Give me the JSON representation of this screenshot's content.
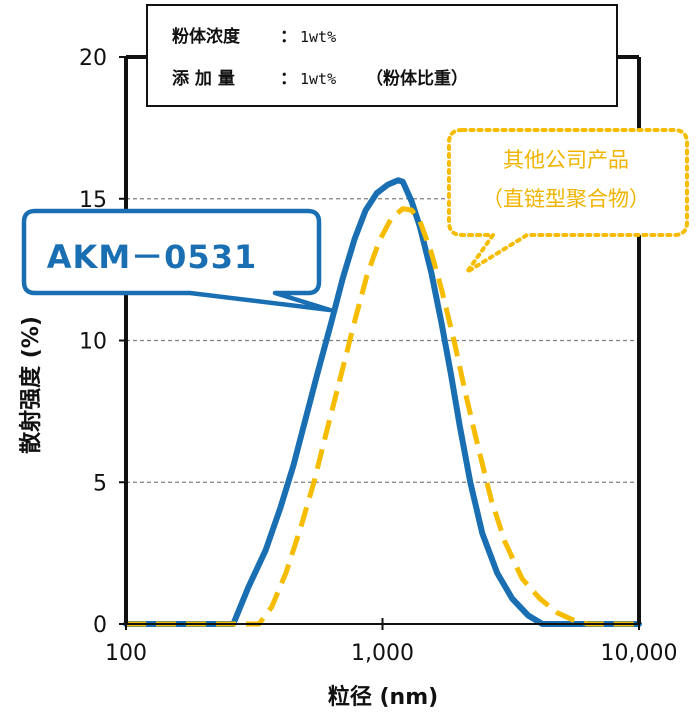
{
  "info_box": {
    "line1_label": "粉体浓度",
    "line1_sep": "：",
    "line1_value": "1wt%",
    "line2_label": "添 加 量",
    "line2_sep": "：",
    "line2_value": "1wt%",
    "line2_note": "（粉体比重）"
  },
  "callouts": {
    "akm": "AKM－0531",
    "other_line1": "其他公司产品",
    "other_line2": "（直链型聚合物）"
  },
  "colors": {
    "akm_series": "#1a6fb3",
    "other_series": "#f5bc00",
    "grid": "#808080"
  },
  "chart_data": {
    "type": "line",
    "xlabel": "粒径 (nm)",
    "ylabel": "散射强度 (%)",
    "xscale": "log",
    "xlim": [
      100,
      10000
    ],
    "ylim": [
      0,
      20
    ],
    "x_ticks": [
      {
        "value": 100,
        "label": "100"
      },
      {
        "value": 1000,
        "label": "1,000"
      },
      {
        "value": 10000,
        "label": "10,000"
      }
    ],
    "y_ticks": [
      {
        "value": 0,
        "label": "0"
      },
      {
        "value": 5,
        "label": "5"
      },
      {
        "value": 10,
        "label": "10"
      },
      {
        "value": 15,
        "label": "15"
      },
      {
        "value": 20,
        "label": "20"
      }
    ],
    "grid": "horizontal dashed",
    "legend": "callouts",
    "series": [
      {
        "name": "AKM－0531",
        "style": "solid",
        "points": [
          [
            100,
            0
          ],
          [
            200,
            0
          ],
          [
            262,
            0
          ],
          [
            300,
            1.3
          ],
          [
            350,
            2.6
          ],
          [
            400,
            4.1
          ],
          [
            450,
            5.6
          ],
          [
            500,
            7.2
          ],
          [
            560,
            8.9
          ],
          [
            630,
            10.6
          ],
          [
            700,
            12.2
          ],
          [
            780,
            13.6
          ],
          [
            860,
            14.6
          ],
          [
            950,
            15.2
          ],
          [
            1050,
            15.5
          ],
          [
            1150,
            15.65
          ],
          [
            1200,
            15.6
          ],
          [
            1300,
            14.9
          ],
          [
            1400,
            14.0
          ],
          [
            1550,
            12.4
          ],
          [
            1700,
            10.6
          ],
          [
            1850,
            8.8
          ],
          [
            2000,
            7.0
          ],
          [
            2200,
            5.0
          ],
          [
            2450,
            3.2
          ],
          [
            2800,
            1.8
          ],
          [
            3200,
            0.9
          ],
          [
            3700,
            0.3
          ],
          [
            4200,
            0
          ],
          [
            10000,
            0
          ]
        ]
      },
      {
        "name": "其他公司产品（直链型聚合物）",
        "style": "dashed",
        "points": [
          [
            100,
            0
          ],
          [
            200,
            0
          ],
          [
            330,
            0
          ],
          [
            370,
            0.6
          ],
          [
            420,
            1.8
          ],
          [
            480,
            3.4
          ],
          [
            540,
            5.0
          ],
          [
            610,
            6.9
          ],
          [
            690,
            8.8
          ],
          [
            780,
            10.7
          ],
          [
            870,
            12.3
          ],
          [
            970,
            13.5
          ],
          [
            1080,
            14.3
          ],
          [
            1200,
            14.65
          ],
          [
            1300,
            14.6
          ],
          [
            1400,
            14.2
          ],
          [
            1550,
            13.1
          ],
          [
            1700,
            11.8
          ],
          [
            1900,
            10.0
          ],
          [
            2100,
            8.2
          ],
          [
            2350,
            6.3
          ],
          [
            2650,
            4.4
          ],
          [
            3000,
            2.9
          ],
          [
            3500,
            1.6
          ],
          [
            4100,
            0.9
          ],
          [
            4800,
            0.4
          ],
          [
            5500,
            0.15
          ],
          [
            6300,
            0
          ],
          [
            10000,
            0
          ]
        ]
      }
    ]
  }
}
